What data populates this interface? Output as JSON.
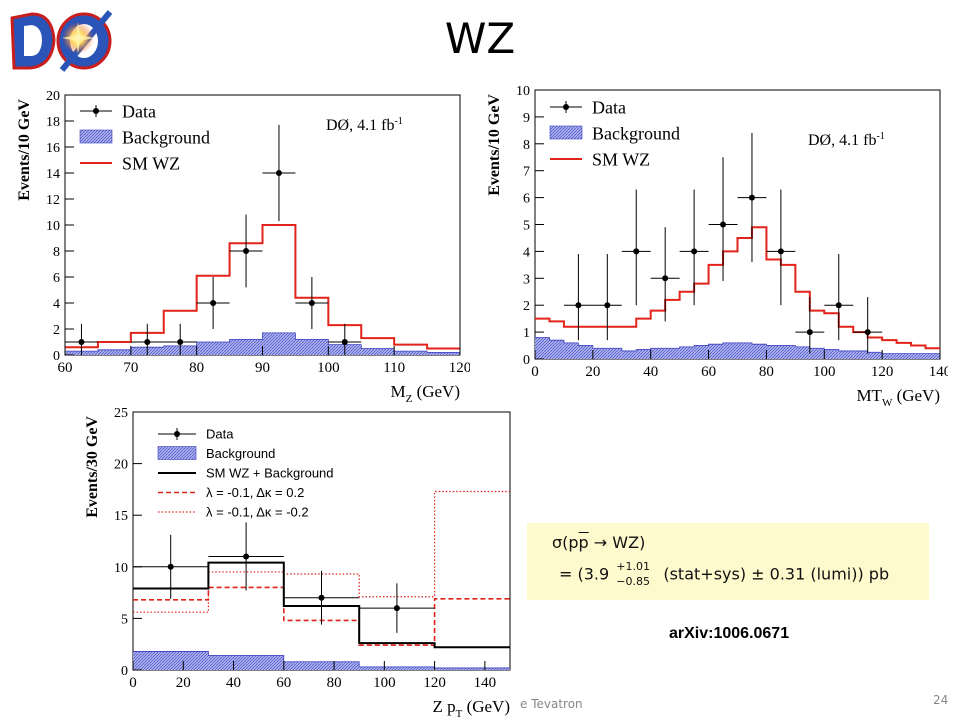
{
  "slide": {
    "title": "WZ",
    "logo_text": "DØ",
    "arxiv": "arXiv:1006.0671",
    "footer_left": "e Tevatron",
    "page_number": "24"
  },
  "cross_section": {
    "line1_prefix": "σ(p",
    "line1_pbar": "p",
    "line1_suffix": " → WZ)",
    "line2_prefix": "= (3.9 ",
    "err_up": "+1.01",
    "err_down": "−0.85",
    "line2_suffix": " (stat+sys) ± 0.31 (lumi)) pb"
  },
  "colors": {
    "background_fill": "#aab0ee",
    "background_edge": "#3a3fbd",
    "sm_line": "#e2231a",
    "data": "#000000",
    "xsec_box": "#fffacd"
  },
  "chart_data": [
    {
      "type": "histogram",
      "xlabel": "M",
      "xlabel_sub": "Z",
      "xlabel_unit": " (GeV)",
      "ylabel": "Events/10 GeV",
      "xlim": [
        60,
        120
      ],
      "ylim": [
        0,
        20
      ],
      "xticks": [
        60,
        70,
        80,
        90,
        100,
        110,
        120
      ],
      "yticks": [
        0,
        2,
        4,
        6,
        8,
        10,
        12,
        14,
        16,
        18,
        20
      ],
      "annotation": "DØ, 4.1 fb",
      "annotation_sup": "-1",
      "legend": [
        "Data",
        "Background",
        "SM WZ"
      ],
      "bin_edges": [
        60,
        65,
        70,
        75,
        80,
        85,
        90,
        95,
        100,
        105,
        110,
        115,
        120
      ],
      "background": [
        0.3,
        0.4,
        0.6,
        0.7,
        1.0,
        1.2,
        1.7,
        1.2,
        0.8,
        0.5,
        0.3,
        0.2
      ],
      "sm": [
        0.6,
        1.0,
        1.7,
        3.4,
        6.1,
        8.6,
        10.0,
        4.4,
        2.3,
        1.3,
        0.8,
        0.5
      ],
      "data": [
        {
          "x": 62.5,
          "y": 1,
          "xerr": 2.5,
          "ylo": 0,
          "yhi": 2.4
        },
        {
          "x": 72.5,
          "y": 1,
          "xerr": 2.5,
          "ylo": 0,
          "yhi": 2.4
        },
        {
          "x": 77.5,
          "y": 1,
          "xerr": 2.5,
          "ylo": 0,
          "yhi": 2.4
        },
        {
          "x": 82.5,
          "y": 4,
          "xerr": 2.5,
          "ylo": 2.0,
          "yhi": 6.0
        },
        {
          "x": 87.5,
          "y": 8,
          "xerr": 2.5,
          "ylo": 5.2,
          "yhi": 10.8
        },
        {
          "x": 92.5,
          "y": 14,
          "xerr": 2.5,
          "ylo": 10.3,
          "yhi": 17.7
        },
        {
          "x": 97.5,
          "y": 4,
          "xerr": 2.5,
          "ylo": 2.0,
          "yhi": 6.0
        },
        {
          "x": 102.5,
          "y": 1,
          "xerr": 2.5,
          "ylo": 0,
          "yhi": 2.4
        }
      ]
    },
    {
      "type": "histogram",
      "xlabel": "MT",
      "xlabel_sub": "W",
      "xlabel_unit": " (GeV)",
      "ylabel": "Events/10 GeV",
      "xlim": [
        0,
        140
      ],
      "ylim": [
        0,
        10
      ],
      "xticks": [
        0,
        20,
        40,
        60,
        80,
        100,
        120,
        140
      ],
      "yticks": [
        0,
        1,
        2,
        3,
        4,
        5,
        6,
        7,
        8,
        9,
        10
      ],
      "annotation": "DØ, 4.1 fb",
      "annotation_sup": "-1",
      "legend": [
        "Data",
        "Background",
        "SM WZ"
      ],
      "bin_edges": [
        0,
        5,
        10,
        15,
        20,
        25,
        30,
        35,
        40,
        45,
        50,
        55,
        60,
        65,
        70,
        75,
        80,
        85,
        90,
        95,
        100,
        105,
        110,
        115,
        120,
        125,
        130,
        135,
        140
      ],
      "background": [
        0.8,
        0.7,
        0.6,
        0.5,
        0.4,
        0.4,
        0.3,
        0.35,
        0.4,
        0.4,
        0.45,
        0.5,
        0.55,
        0.6,
        0.6,
        0.55,
        0.5,
        0.5,
        0.45,
        0.4,
        0.35,
        0.3,
        0.3,
        0.25,
        0.2,
        0.2,
        0.2,
        0.2
      ],
      "sm": [
        1.5,
        1.4,
        1.2,
        1.2,
        1.2,
        1.2,
        1.2,
        1.5,
        1.8,
        2.2,
        2.5,
        2.8,
        3.5,
        4.0,
        4.5,
        4.9,
        3.7,
        3.5,
        2.5,
        1.8,
        1.7,
        1.2,
        1.0,
        0.8,
        0.7,
        0.6,
        0.5,
        0.4
      ],
      "data": [
        {
          "x": 15,
          "y": 2,
          "xerr": 5,
          "ylo": 0.7,
          "yhi": 3.9
        },
        {
          "x": 25,
          "y": 2,
          "xerr": 5,
          "ylo": 0.7,
          "yhi": 3.9
        },
        {
          "x": 35,
          "y": 4,
          "xerr": 5,
          "ylo": 2.0,
          "yhi": 6.3
        },
        {
          "x": 45,
          "y": 3,
          "xerr": 5,
          "ylo": 1.4,
          "yhi": 4.9
        },
        {
          "x": 55,
          "y": 4,
          "xerr": 5,
          "ylo": 2.0,
          "yhi": 6.3
        },
        {
          "x": 65,
          "y": 5,
          "xerr": 5,
          "ylo": 2.9,
          "yhi": 7.5
        },
        {
          "x": 75,
          "y": 6,
          "xerr": 5,
          "ylo": 3.6,
          "yhi": 8.4
        },
        {
          "x": 85,
          "y": 4,
          "xerr": 5,
          "ylo": 2.0,
          "yhi": 6.3
        },
        {
          "x": 95,
          "y": 1,
          "xerr": 5,
          "ylo": 0.2,
          "yhi": 2.3
        },
        {
          "x": 105,
          "y": 2,
          "xerr": 5,
          "ylo": 0.7,
          "yhi": 3.9
        },
        {
          "x": 115,
          "y": 1,
          "xerr": 5,
          "ylo": 0.2,
          "yhi": 2.3
        }
      ]
    },
    {
      "type": "histogram",
      "xlabel": "Z p",
      "xlabel_sub": "T",
      "xlabel_unit": " (GeV)",
      "ylabel": "Events/30 GeV",
      "xlim": [
        0,
        150
      ],
      "ylim": [
        0,
        25
      ],
      "xticks": [
        0,
        20,
        40,
        60,
        80,
        100,
        120,
        140
      ],
      "yticks": [
        0,
        5,
        10,
        15,
        20,
        25
      ],
      "legend": [
        "Data",
        "Background",
        "SM WZ + Background",
        "λ = -0.1, Δκ =  0.2",
        "λ = -0.1, Δκ = -0.2"
      ],
      "bin_edges": [
        0,
        30,
        60,
        90,
        120,
        150
      ],
      "background": [
        1.8,
        1.4,
        0.8,
        0.3,
        0.2
      ],
      "sm": [
        7.9,
        10.4,
        6.2,
        2.6,
        2.2
      ],
      "dashed": [
        6.8,
        8.0,
        4.8,
        2.4,
        6.9
      ],
      "dotted": [
        5.6,
        9.5,
        9.3,
        7.1,
        17.3
      ],
      "data": [
        {
          "x": 15,
          "y": 10,
          "xerr": 15,
          "ylo": 6.9,
          "yhi": 13.1
        },
        {
          "x": 45,
          "y": 11,
          "xerr": 15,
          "ylo": 7.7,
          "yhi": 14.3
        },
        {
          "x": 75,
          "y": 7,
          "xerr": 15,
          "ylo": 4.4,
          "yhi": 9.6
        },
        {
          "x": 105,
          "y": 6,
          "xerr": 15,
          "ylo": 3.6,
          "yhi": 8.4
        }
      ]
    }
  ]
}
